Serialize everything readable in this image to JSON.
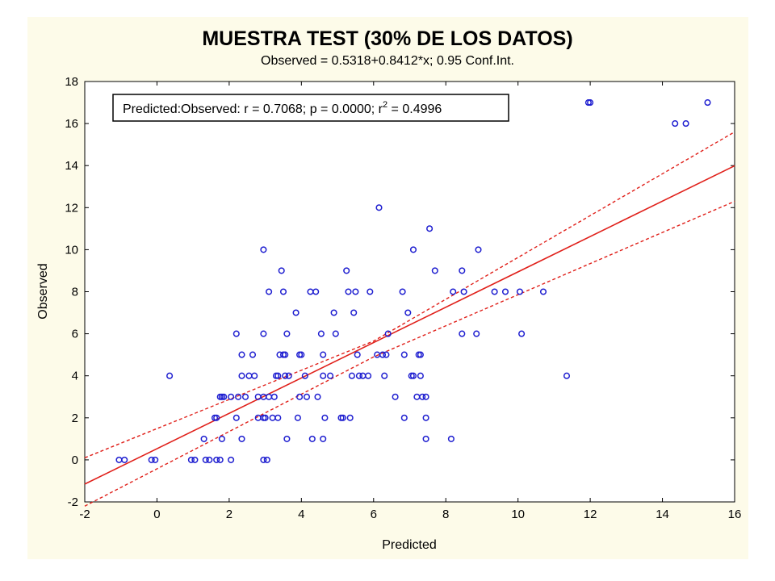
{
  "chart_data": {
    "type": "scatter",
    "title": "MUESTRA TEST (30% DE LOS DATOS)",
    "subtitle": "Observed = 0.5318+0.8412*x; 0.95 Conf.Int.",
    "xlabel": "Predicted",
    "ylabel": "Observed",
    "xlim": [
      -2,
      16
    ],
    "ylim": [
      -2,
      18
    ],
    "xticks": [
      -2,
      0,
      2,
      4,
      6,
      8,
      10,
      12,
      14,
      16
    ],
    "yticks": [
      -2,
      0,
      2,
      4,
      6,
      8,
      10,
      12,
      14,
      16,
      18
    ],
    "legend_position": "top-left",
    "stats": {
      "prefix": "Predicted:Observed:   r = 0.7068; p = 0.0000; r",
      "sup": "2",
      "suffix": " = 0.4996"
    },
    "colors": {
      "points": "#1f1fd0",
      "fit_line": "#e0201a",
      "ci_lines": "#e0201a",
      "panel": "#fdfbe9"
    },
    "regression": {
      "intercept": 0.5318,
      "slope": 0.8412,
      "conf_level": 0.95
    },
    "ci_points": {
      "x": [
        -2,
        6,
        16
      ],
      "upper": [
        0.1,
        5.65,
        15.6
      ],
      "lower": [
        -2.2,
        4.9,
        12.3
      ]
    },
    "points": [
      [
        -1.05,
        0
      ],
      [
        -0.9,
        0
      ],
      [
        -0.15,
        0
      ],
      [
        -0.05,
        0
      ],
      [
        0.95,
        0
      ],
      [
        1.05,
        0
      ],
      [
        1.35,
        0
      ],
      [
        1.45,
        0
      ],
      [
        1.65,
        0
      ],
      [
        1.75,
        0
      ],
      [
        2.05,
        0
      ],
      [
        2.95,
        0
      ],
      [
        3.05,
        0
      ],
      [
        0.35,
        4
      ],
      [
        1.3,
        1
      ],
      [
        1.6,
        2
      ],
      [
        1.65,
        2
      ],
      [
        1.75,
        3
      ],
      [
        1.8,
        3
      ],
      [
        1.85,
        3
      ],
      [
        1.8,
        1
      ],
      [
        2.05,
        3
      ],
      [
        2.2,
        6
      ],
      [
        2.25,
        3
      ],
      [
        2.2,
        2
      ],
      [
        2.35,
        1
      ],
      [
        2.35,
        4
      ],
      [
        2.35,
        5
      ],
      [
        2.45,
        3
      ],
      [
        2.55,
        4
      ],
      [
        2.65,
        5
      ],
      [
        2.7,
        4
      ],
      [
        2.8,
        2
      ],
      [
        2.8,
        3
      ],
      [
        2.95,
        2
      ],
      [
        2.95,
        3
      ],
      [
        2.95,
        10
      ],
      [
        2.95,
        6
      ],
      [
        3.0,
        2
      ],
      [
        3.1,
        3
      ],
      [
        3.1,
        8
      ],
      [
        3.2,
        2
      ],
      [
        3.25,
        3
      ],
      [
        3.3,
        4
      ],
      [
        3.35,
        4
      ],
      [
        3.35,
        2
      ],
      [
        3.4,
        5
      ],
      [
        3.45,
        9
      ],
      [
        3.5,
        5
      ],
      [
        3.5,
        8
      ],
      [
        3.55,
        4
      ],
      [
        3.55,
        5
      ],
      [
        3.6,
        6
      ],
      [
        3.6,
        1
      ],
      [
        3.65,
        4
      ],
      [
        3.85,
        7
      ],
      [
        3.9,
        2
      ],
      [
        3.95,
        3
      ],
      [
        3.95,
        5
      ],
      [
        4.0,
        5
      ],
      [
        4.1,
        4
      ],
      [
        4.15,
        3
      ],
      [
        4.25,
        8
      ],
      [
        4.3,
        1
      ],
      [
        4.4,
        8
      ],
      [
        4.45,
        3
      ],
      [
        4.55,
        6
      ],
      [
        4.6,
        4
      ],
      [
        4.6,
        1
      ],
      [
        4.6,
        5
      ],
      [
        4.65,
        2
      ],
      [
        4.8,
        4
      ],
      [
        4.9,
        7
      ],
      [
        4.95,
        6
      ],
      [
        5.1,
        2
      ],
      [
        5.15,
        2
      ],
      [
        5.25,
        9
      ],
      [
        5.3,
        8
      ],
      [
        5.35,
        2
      ],
      [
        5.4,
        4
      ],
      [
        5.45,
        7
      ],
      [
        5.5,
        8
      ],
      [
        5.55,
        5
      ],
      [
        5.6,
        4
      ],
      [
        5.7,
        4
      ],
      [
        5.85,
        4
      ],
      [
        5.9,
        8
      ],
      [
        6.1,
        5
      ],
      [
        6.15,
        12
      ],
      [
        6.25,
        5
      ],
      [
        6.3,
        4
      ],
      [
        6.35,
        5
      ],
      [
        6.4,
        6
      ],
      [
        6.6,
        3
      ],
      [
        6.8,
        8
      ],
      [
        6.85,
        2
      ],
      [
        6.85,
        5
      ],
      [
        6.95,
        7
      ],
      [
        7.05,
        4
      ],
      [
        7.1,
        10
      ],
      [
        7.1,
        4
      ],
      [
        7.2,
        3
      ],
      [
        7.25,
        5
      ],
      [
        7.3,
        5
      ],
      [
        7.3,
        4
      ],
      [
        7.35,
        3
      ],
      [
        7.45,
        3
      ],
      [
        7.45,
        2
      ],
      [
        7.45,
        1
      ],
      [
        7.55,
        11
      ],
      [
        7.7,
        9
      ],
      [
        8.15,
        1
      ],
      [
        8.2,
        8
      ],
      [
        8.45,
        9
      ],
      [
        8.45,
        6
      ],
      [
        8.5,
        8
      ],
      [
        8.85,
        6
      ],
      [
        8.9,
        10
      ],
      [
        9.35,
        8
      ],
      [
        9.65,
        8
      ],
      [
        10.05,
        8
      ],
      [
        10.1,
        6
      ],
      [
        10.7,
        8
      ],
      [
        11.35,
        4
      ],
      [
        11.95,
        17
      ],
      [
        12.0,
        17
      ],
      [
        14.35,
        16
      ],
      [
        14.65,
        16
      ],
      [
        15.25,
        17
      ]
    ]
  }
}
